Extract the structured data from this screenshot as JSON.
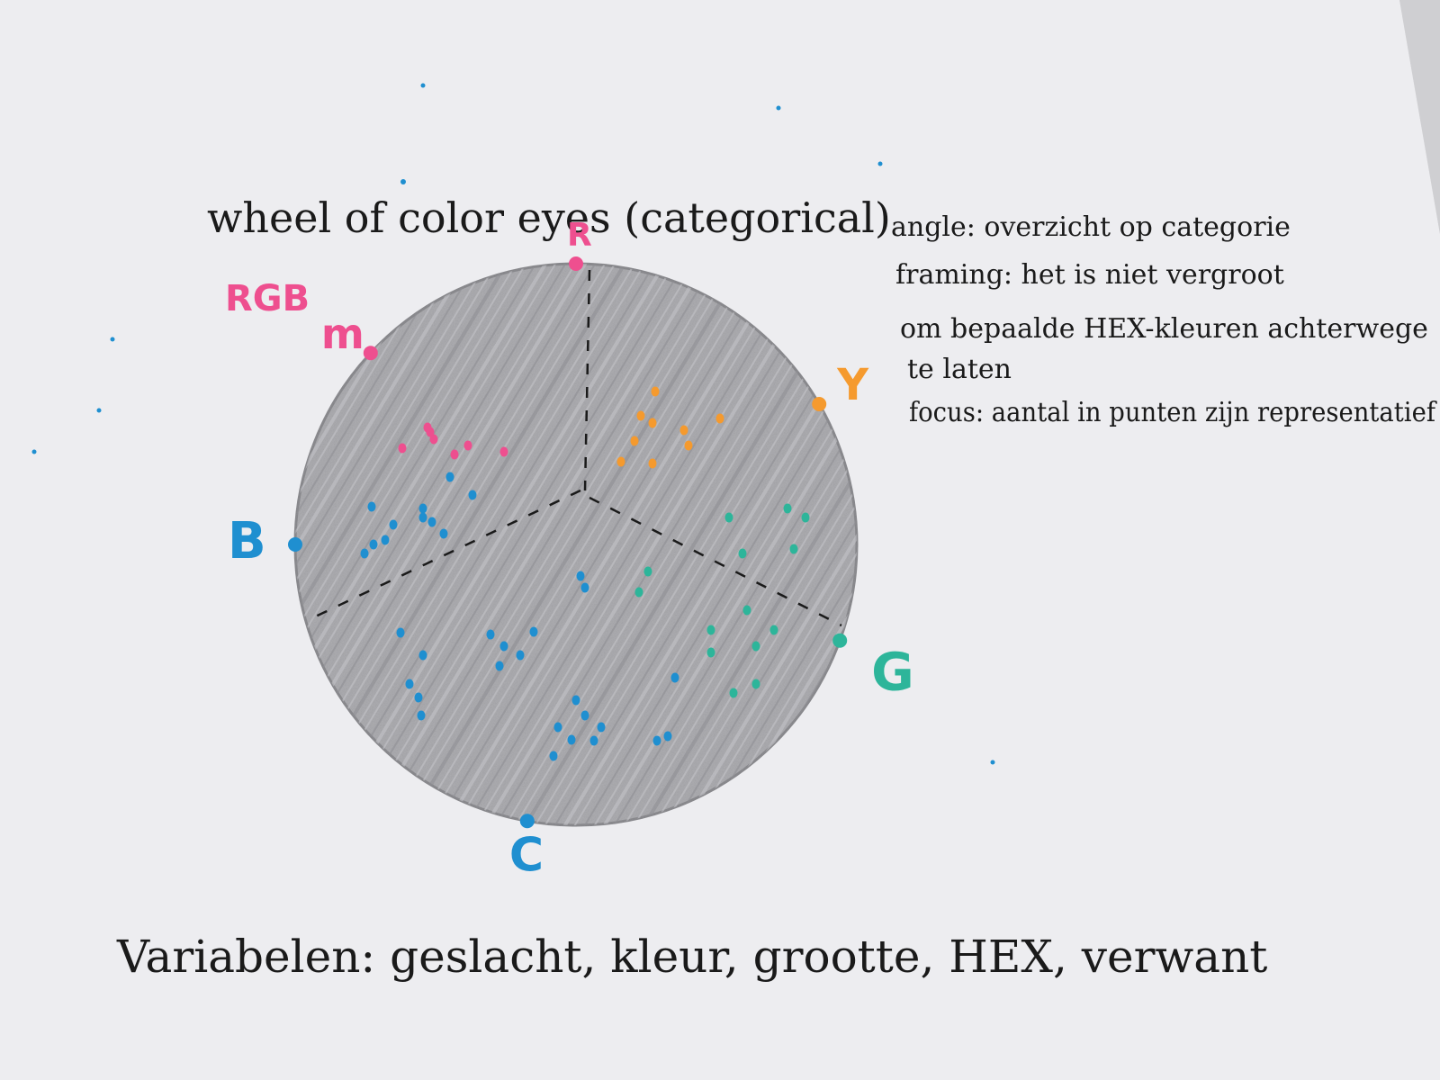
{
  "colors": {
    "paper": "#ededf0",
    "wheel_fill": "#aeaeb2",
    "pink": "#ee4f8f",
    "orange": "#f59a2e",
    "teal": "#2db59a",
    "blue": "#1f8fd0",
    "ink": "#1a1a1a"
  },
  "diagram": {
    "title": "wheel of color eyes (categorical)",
    "categories": [
      {
        "label": "R",
        "angle_deg": -90,
        "color": "#ee4f8f"
      },
      {
        "label": "Y",
        "angle_deg": -30,
        "color": "#f59a2e"
      },
      {
        "label": "G",
        "angle_deg": 20,
        "color": "#2db59a"
      },
      {
        "label": "C",
        "angle_deg": 100,
        "color": "#1f8fd0"
      },
      {
        "label": "B",
        "angle_deg": 180,
        "color": "#1f8fd0"
      },
      {
        "label": "m",
        "angle_deg": 223,
        "color": "#ee4f8f"
      }
    ],
    "corner_mark": "RGB",
    "notes": [
      "angle: overzicht op categorie",
      "framing: het is niet vergroot",
      "om bepaalde HEX-kleuren achterwege",
      "te laten",
      "focus: aantal in punten zijn representatief"
    ],
    "variables": "Variabelen: geslacht, kleur, grootte, HEX, verwant"
  }
}
